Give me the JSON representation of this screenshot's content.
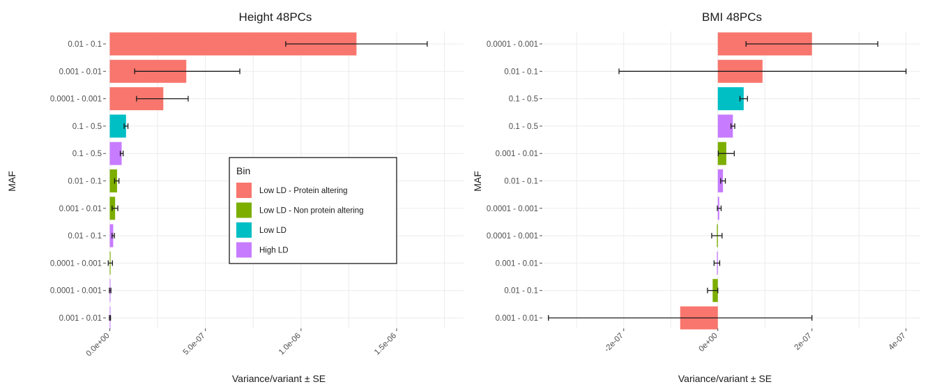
{
  "chart_data": [
    {
      "type": "bar",
      "orientation": "horizontal",
      "title": "Height 48PCs",
      "xlabel": "Variance/variant ± SE",
      "ylabel": "MAF",
      "xlim": [
        -2e-08,
        1.85e-06
      ],
      "xticks": [
        0,
        5e-07,
        1e-06,
        1.5e-06
      ],
      "xtick_labels": [
        "0.0e+00",
        "5.0e-07",
        "1.0e-06",
        "1.5e-06"
      ],
      "grid": true,
      "bars": [
        {
          "category": "0.01 - 0.1",
          "bin": "Low LD - Protein altering",
          "value": 1.29e-06,
          "se_low": 9.2e-07,
          "se_high": 1.66e-06
        },
        {
          "category": "0.001 - 0.01",
          "bin": "Low LD - Protein altering",
          "value": 4e-07,
          "se_low": 1.3e-07,
          "se_high": 6.8e-07
        },
        {
          "category": "0.0001 - 0.001",
          "bin": "Low LD - Protein altering",
          "value": 2.8e-07,
          "se_low": 1.4e-07,
          "se_high": 4.1e-07
        },
        {
          "category": "0.1 - 0.5",
          "bin": "Low LD",
          "value": 8.5e-08,
          "se_low": 7.5e-08,
          "se_high": 9.5e-08
        },
        {
          "category": "0.1 - 0.5",
          "bin": "High LD",
          "value": 6.2e-08,
          "se_low": 5.5e-08,
          "se_high": 7e-08
        },
        {
          "category": "0.01 - 0.1",
          "bin": "Low LD - Non protein altering",
          "value": 3.8e-08,
          "se_low": 2.5e-08,
          "se_high": 4.8e-08
        },
        {
          "category": "0.001 - 0.01",
          "bin": "Low LD - Non protein altering",
          "value": 2.8e-08,
          "se_low": 1.2e-08,
          "se_high": 4.2e-08
        },
        {
          "category": "0.01 - 0.1",
          "bin": "High LD",
          "value": 1.8e-08,
          "se_low": 1.2e-08,
          "se_high": 2.4e-08
        },
        {
          "category": "0.0001 - 0.001",
          "bin": "Low LD - Non protein altering",
          "value": 4e-09,
          "se_low": -8e-09,
          "se_high": 1.4e-08
        },
        {
          "category": "0.0001 - 0.001",
          "bin": "High LD",
          "value": 2e-09,
          "se_low": -2e-09,
          "se_high": 6e-09
        },
        {
          "category": "0.001 - 0.01",
          "bin": "High LD",
          "value": 1e-09,
          "se_low": -2e-09,
          "se_high": 4e-09
        }
      ],
      "legend": {
        "title": "Bin",
        "placement": "center",
        "entries": [
          {
            "label": "Low LD - Protein altering",
            "color": "#F8766D"
          },
          {
            "label": "Low LD - Non protein altering",
            "color": "#7CAE00"
          },
          {
            "label": "Low LD",
            "color": "#00BFC4"
          },
          {
            "label": "High LD",
            "color": "#C77CFF"
          }
        ]
      }
    },
    {
      "type": "bar",
      "orientation": "horizontal",
      "title": "BMI 48PCs",
      "xlabel": "Variance/variant ± SE",
      "ylabel": "MAF",
      "xlim": [
        -3.7e-07,
        4.3e-07
      ],
      "xticks": [
        -2e-07,
        0,
        2e-07,
        4e-07
      ],
      "xtick_labels": [
        "-2e-07",
        "0e+00",
        "2e-07",
        "4e-07"
      ],
      "grid": true,
      "bars": [
        {
          "category": "0.0001 - 0.001",
          "bin": "Low LD - Protein altering",
          "value": 2e-07,
          "se_low": 6e-08,
          "se_high": 3.4e-07
        },
        {
          "category": "0.01 - 0.1",
          "bin": "Low LD - Protein altering",
          "value": 9.5e-08,
          "se_low": -2.1e-07,
          "se_high": 4e-07
        },
        {
          "category": "0.1 - 0.5",
          "bin": "Low LD",
          "value": 5.5e-08,
          "se_low": 4.7e-08,
          "se_high": 6.3e-08
        },
        {
          "category": "0.1 - 0.5",
          "bin": "High LD",
          "value": 3.2e-08,
          "se_low": 2.8e-08,
          "se_high": 3.6e-08
        },
        {
          "category": "0.001 - 0.01",
          "bin": "Low LD - Non protein altering",
          "value": 1.8e-08,
          "se_low": 1e-09,
          "se_high": 3.5e-08
        },
        {
          "category": "0.01 - 0.1",
          "bin": "High LD",
          "value": 1.1e-08,
          "se_low": 6e-09,
          "se_high": 1.6e-08
        },
        {
          "category": "0.0001 - 0.001",
          "bin": "High LD",
          "value": 3e-09,
          "se_low": -1e-09,
          "se_high": 7e-09
        },
        {
          "category": "0.0001 - 0.001",
          "bin": "Low LD - Non protein altering",
          "value": -2e-09,
          "se_low": -1.3e-08,
          "se_high": 9e-09
        },
        {
          "category": "0.001 - 0.01",
          "bin": "High LD",
          "value": -2e-09,
          "se_low": -8e-09,
          "se_high": 4e-09
        },
        {
          "category": "0.01 - 0.1",
          "bin": "Low LD - Non protein altering",
          "value": -1.1e-08,
          "se_low": -2.2e-08,
          "se_high": 0.0
        },
        {
          "category": "0.001 - 0.01",
          "bin": "Low LD - Protein altering",
          "value": -8e-08,
          "se_low": -3.6e-07,
          "se_high": 2e-07
        }
      ]
    }
  ]
}
